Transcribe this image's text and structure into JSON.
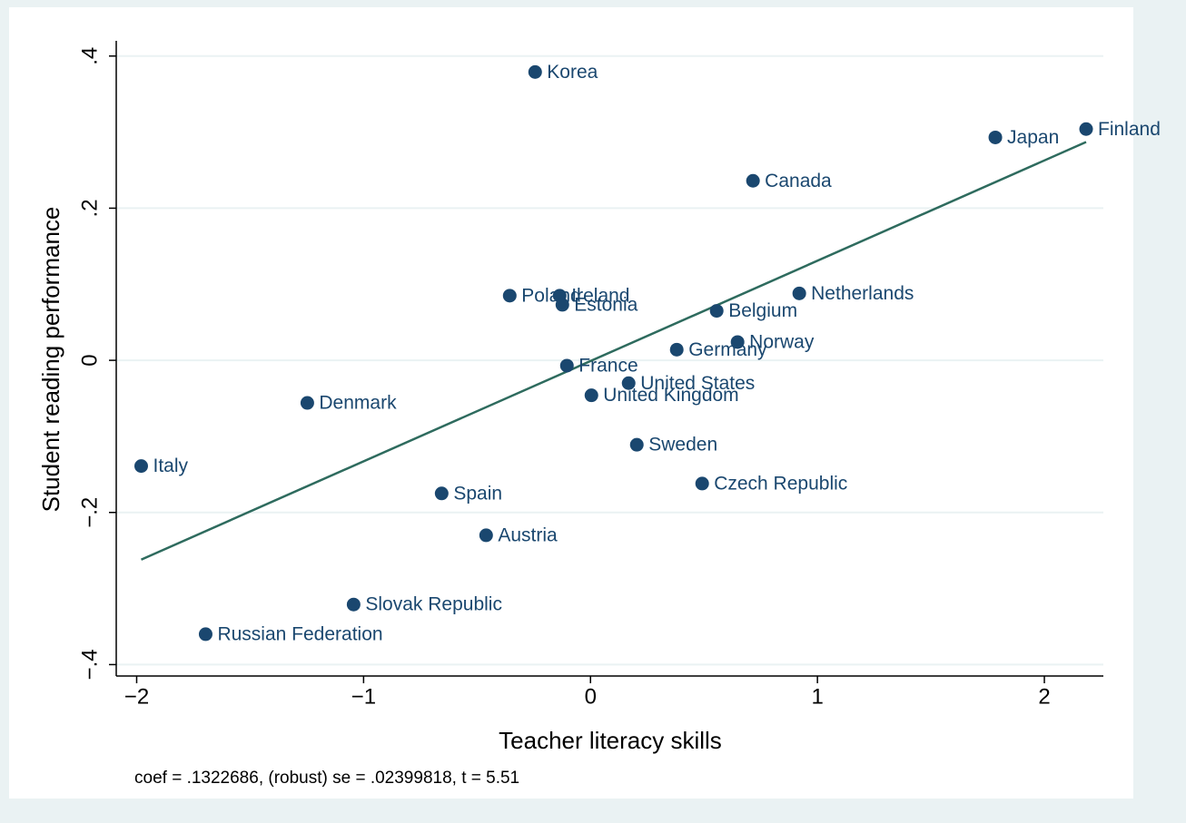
{
  "chart_data": {
    "type": "scatter",
    "xlabel": "Teacher literacy skills",
    "ylabel": "Student reading performance",
    "note": "coef = .1322686, (robust) se = .02399818, t = 5.51",
    "xlim": [
      -2.09,
      2.26
    ],
    "ylim": [
      -0.415,
      0.42
    ],
    "xticks": [
      {
        "value": -2,
        "label": "−2"
      },
      {
        "value": -1,
        "label": "−1"
      },
      0,
      1,
      2
    ],
    "yticks": [
      {
        "value": -0.4,
        "label": "−.4"
      },
      {
        "value": -0.2,
        "label": "−.2"
      },
      0,
      {
        "value": 0.2,
        "label": ".2"
      },
      {
        "value": 0.4,
        "label": ".4"
      }
    ],
    "grid": true,
    "points": {
      "color": "#1a476f",
      "labels": [
        "Korea",
        "Finland",
        "Japan",
        "Canada",
        "Poland",
        "Ireland",
        "Estonia",
        "Netherlands",
        "Belgium",
        "Germany",
        "Norway",
        "France",
        "United States",
        "United Kingdom",
        "Denmark",
        "Sweden",
        "Italy",
        "Czech Republic",
        "Spain",
        "Austria",
        "Slovak Republic",
        "Russian Federation"
      ],
      "x": [
        -0.244,
        2.184,
        1.784,
        0.716,
        -0.356,
        -0.136,
        -0.124,
        0.92,
        0.556,
        0.38,
        0.648,
        -0.104,
        0.168,
        0.004,
        -1.248,
        0.204,
        -1.98,
        0.492,
        -0.656,
        -0.46,
        -1.044,
        -1.696
      ],
      "y": [
        0.379,
        0.304,
        0.293,
        0.236,
        0.085,
        0.085,
        0.073,
        0.088,
        0.065,
        0.014,
        0.024,
        -0.007,
        -0.03,
        -0.046,
        -0.056,
        -0.111,
        -0.139,
        -0.162,
        -0.175,
        -0.23,
        -0.321,
        -0.36
      ]
    },
    "fit": {
      "color": "#2e6b5e",
      "x": [
        -1.98,
        2.184
      ],
      "y": [
        -0.262,
        0.287
      ]
    }
  }
}
